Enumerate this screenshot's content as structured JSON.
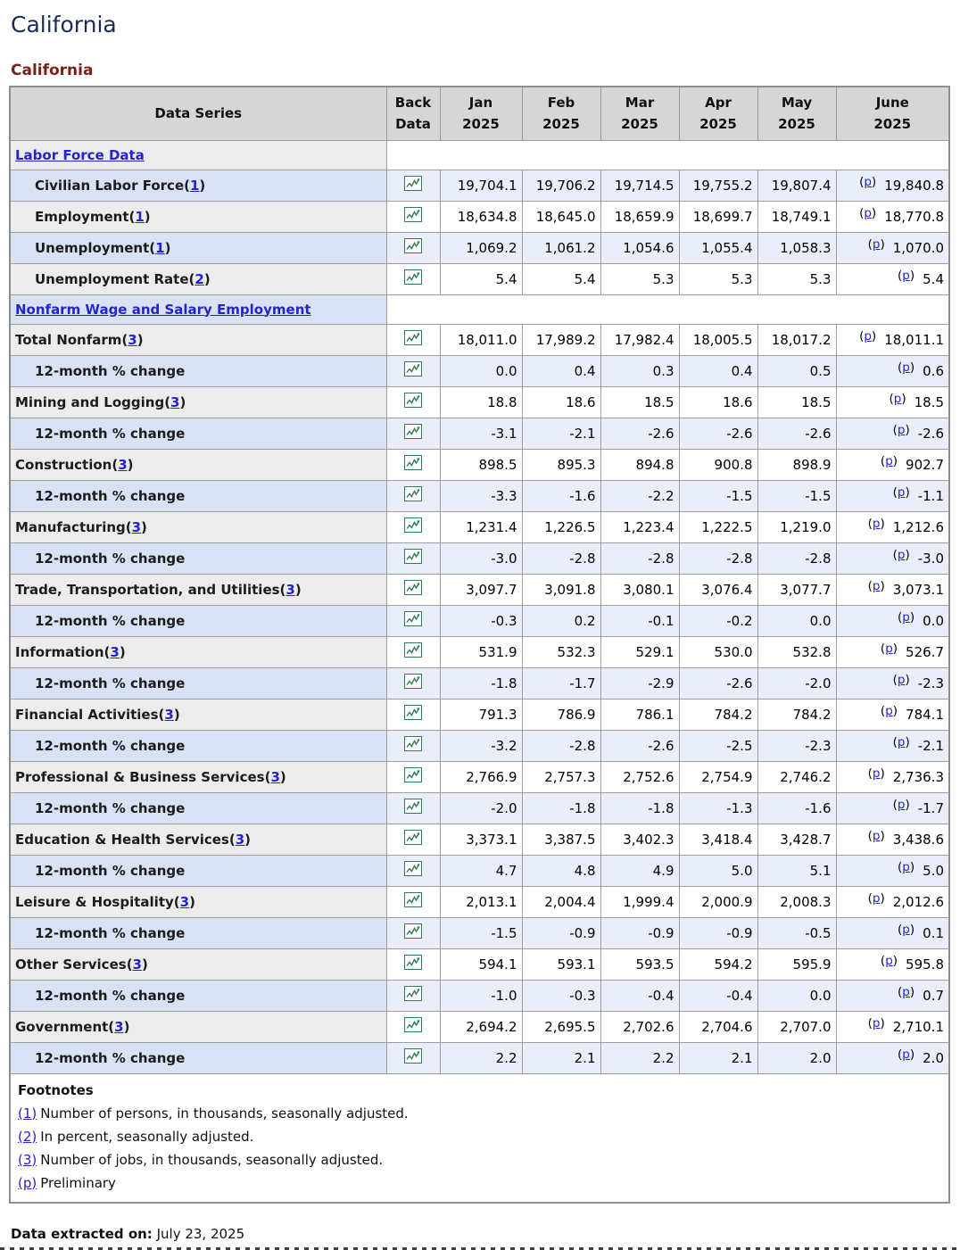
{
  "page": {
    "title": "California",
    "section_title": "California",
    "extracted_label": "Data extracted on:",
    "extracted_date": "July 23, 2025"
  },
  "colors": {
    "header_bg": "#d6d6d6",
    "row_label_blue": "#d8e2f4",
    "row_cell_blue": "#e9eefa",
    "row_label_gray": "#ececec",
    "link_blue": "#2424cf",
    "title_navy": "#1b2a57",
    "title_maroon": "#7a1f16",
    "icon_green": "#2e7d57"
  },
  "table": {
    "headers": {
      "data_series": "Data Series",
      "back_line1": "Back",
      "back_line2": "Data",
      "months": [
        {
          "month": "Jan",
          "year": "2025"
        },
        {
          "month": "Feb",
          "year": "2025"
        },
        {
          "month": "Mar",
          "year": "2025"
        },
        {
          "month": "Apr",
          "year": "2025"
        },
        {
          "month": "May",
          "year": "2025"
        },
        {
          "month": "June",
          "year": "2025"
        }
      ]
    },
    "back_data_icon": "history-chart-icon",
    "p_marker": "p",
    "rows": [
      {
        "type": "section",
        "label": "Labor Force Data",
        "shade": "gray"
      },
      {
        "type": "data",
        "label": "Civilian Labor Force",
        "fn": "1",
        "indent": true,
        "shade": "blue",
        "values": [
          "19,704.1",
          "19,706.2",
          "19,714.5",
          "19,755.2",
          "19,807.4"
        ],
        "june": "19,840.8"
      },
      {
        "type": "data",
        "label": "Employment",
        "fn": "1",
        "indent": true,
        "shade": "gray",
        "values": [
          "18,634.8",
          "18,645.0",
          "18,659.9",
          "18,699.7",
          "18,749.1"
        ],
        "june": "18,770.8"
      },
      {
        "type": "data",
        "label": "Unemployment",
        "fn": "1",
        "indent": true,
        "shade": "blue",
        "values": [
          "1,069.2",
          "1,061.2",
          "1,054.6",
          "1,055.4",
          "1,058.3"
        ],
        "june": "1,070.0"
      },
      {
        "type": "data",
        "label": "Unemployment Rate",
        "fn": "2",
        "indent": true,
        "shade": "gray",
        "values": [
          "5.4",
          "5.4",
          "5.3",
          "5.3",
          "5.3"
        ],
        "june": "5.4"
      },
      {
        "type": "section",
        "label": "Nonfarm Wage and Salary Employment",
        "shade": "blue"
      },
      {
        "type": "data",
        "label": "Total Nonfarm",
        "fn": "3",
        "indent": false,
        "shade": "gray",
        "values": [
          "18,011.0",
          "17,989.2",
          "17,982.4",
          "18,005.5",
          "18,017.2"
        ],
        "june": "18,011.1"
      },
      {
        "type": "data",
        "label": "12-month % change",
        "indent": true,
        "shade": "blue",
        "values": [
          "0.0",
          "0.4",
          "0.3",
          "0.4",
          "0.5"
        ],
        "june": "0.6"
      },
      {
        "type": "data",
        "label": "Mining and Logging",
        "fn": "3",
        "indent": false,
        "shade": "gray",
        "values": [
          "18.8",
          "18.6",
          "18.5",
          "18.6",
          "18.5"
        ],
        "june": "18.5"
      },
      {
        "type": "data",
        "label": "12-month % change",
        "indent": true,
        "shade": "blue",
        "values": [
          "-3.1",
          "-2.1",
          "-2.6",
          "-2.6",
          "-2.6"
        ],
        "june": "-2.6"
      },
      {
        "type": "data",
        "label": "Construction",
        "fn": "3",
        "indent": false,
        "shade": "gray",
        "values": [
          "898.5",
          "895.3",
          "894.8",
          "900.8",
          "898.9"
        ],
        "june": "902.7"
      },
      {
        "type": "data",
        "label": "12-month % change",
        "indent": true,
        "shade": "blue",
        "values": [
          "-3.3",
          "-1.6",
          "-2.2",
          "-1.5",
          "-1.5"
        ],
        "june": "-1.1"
      },
      {
        "type": "data",
        "label": "Manufacturing",
        "fn": "3",
        "indent": false,
        "shade": "gray",
        "values": [
          "1,231.4",
          "1,226.5",
          "1,223.4",
          "1,222.5",
          "1,219.0"
        ],
        "june": "1,212.6"
      },
      {
        "type": "data",
        "label": "12-month % change",
        "indent": true,
        "shade": "blue",
        "values": [
          "-3.0",
          "-2.8",
          "-2.8",
          "-2.8",
          "-2.8"
        ],
        "june": "-3.0"
      },
      {
        "type": "data",
        "label": "Trade, Transportation, and Utilities",
        "fn": "3",
        "indent": false,
        "shade": "gray",
        "values": [
          "3,097.7",
          "3,091.8",
          "3,080.1",
          "3,076.4",
          "3,077.7"
        ],
        "june": "3,073.1"
      },
      {
        "type": "data",
        "label": "12-month % change",
        "indent": true,
        "shade": "blue",
        "values": [
          "-0.3",
          "0.2",
          "-0.1",
          "-0.2",
          "0.0"
        ],
        "june": "0.0"
      },
      {
        "type": "data",
        "label": "Information",
        "fn": "3",
        "indent": false,
        "shade": "gray",
        "values": [
          "531.9",
          "532.3",
          "529.1",
          "530.0",
          "532.8"
        ],
        "june": "526.7"
      },
      {
        "type": "data",
        "label": "12-month % change",
        "indent": true,
        "shade": "blue",
        "values": [
          "-1.8",
          "-1.7",
          "-2.9",
          "-2.6",
          "-2.0"
        ],
        "june": "-2.3"
      },
      {
        "type": "data",
        "label": "Financial Activities",
        "fn": "3",
        "indent": false,
        "shade": "gray",
        "values": [
          "791.3",
          "786.9",
          "786.1",
          "784.2",
          "784.2"
        ],
        "june": "784.1"
      },
      {
        "type": "data",
        "label": "12-month % change",
        "indent": true,
        "shade": "blue",
        "values": [
          "-3.2",
          "-2.8",
          "-2.6",
          "-2.5",
          "-2.3"
        ],
        "june": "-2.1"
      },
      {
        "type": "data",
        "label": "Professional & Business Services",
        "fn": "3",
        "indent": false,
        "shade": "gray",
        "values": [
          "2,766.9",
          "2,757.3",
          "2,752.6",
          "2,754.9",
          "2,746.2"
        ],
        "june": "2,736.3"
      },
      {
        "type": "data",
        "label": "12-month % change",
        "indent": true,
        "shade": "blue",
        "values": [
          "-2.0",
          "-1.8",
          "-1.8",
          "-1.3",
          "-1.6"
        ],
        "june": "-1.7"
      },
      {
        "type": "data",
        "label": "Education & Health Services",
        "fn": "3",
        "indent": false,
        "shade": "gray",
        "values": [
          "3,373.1",
          "3,387.5",
          "3,402.3",
          "3,418.4",
          "3,428.7"
        ],
        "june": "3,438.6"
      },
      {
        "type": "data",
        "label": "12-month % change",
        "indent": true,
        "shade": "blue",
        "values": [
          "4.7",
          "4.8",
          "4.9",
          "5.0",
          "5.1"
        ],
        "june": "5.0"
      },
      {
        "type": "data",
        "label": "Leisure & Hospitality",
        "fn": "3",
        "indent": false,
        "shade": "gray",
        "values": [
          "2,013.1",
          "2,004.4",
          "1,999.4",
          "2,000.9",
          "2,008.3"
        ],
        "june": "2,012.6"
      },
      {
        "type": "data",
        "label": "12-month % change",
        "indent": true,
        "shade": "blue",
        "values": [
          "-1.5",
          "-0.9",
          "-0.9",
          "-0.9",
          "-0.5"
        ],
        "june": "0.1"
      },
      {
        "type": "data",
        "label": "Other Services",
        "fn": "3",
        "indent": false,
        "shade": "gray",
        "values": [
          "594.1",
          "593.1",
          "593.5",
          "594.2",
          "595.9"
        ],
        "june": "595.8"
      },
      {
        "type": "data",
        "label": "12-month % change",
        "indent": true,
        "shade": "blue",
        "values": [
          "-1.0",
          "-0.3",
          "-0.4",
          "-0.4",
          "0.0"
        ],
        "june": "0.7"
      },
      {
        "type": "data",
        "label": "Government",
        "fn": "3",
        "indent": false,
        "shade": "gray",
        "values": [
          "2,694.2",
          "2,695.5",
          "2,702.6",
          "2,704.6",
          "2,707.0"
        ],
        "june": "2,710.1"
      },
      {
        "type": "data",
        "label": "12-month % change",
        "indent": true,
        "shade": "blue",
        "values": [
          "2.2",
          "2.1",
          "2.2",
          "2.1",
          "2.0"
        ],
        "june": "2.0"
      }
    ]
  },
  "footnotes": {
    "title": "Footnotes",
    "items": [
      {
        "ref": "(1)",
        "text": "Number of persons, in thousands, seasonally adjusted."
      },
      {
        "ref": "(2)",
        "text": "In percent, seasonally adjusted."
      },
      {
        "ref": "(3)",
        "text": "Number of jobs, in thousands, seasonally adjusted."
      },
      {
        "ref": "(p)",
        "text": "Preliminary"
      }
    ]
  }
}
